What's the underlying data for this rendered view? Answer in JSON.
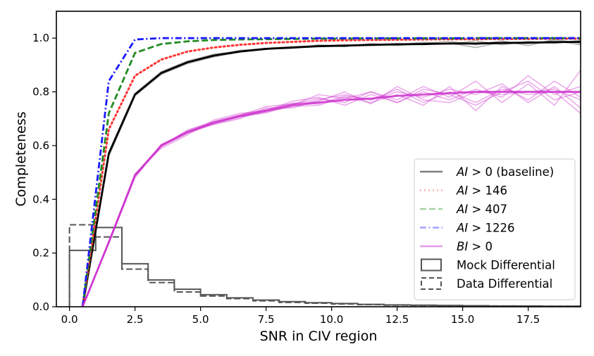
{
  "chart_data": {
    "type": "line",
    "xlabel": "SNR in CIV region",
    "ylabel": "Completeness",
    "xlim": [
      -0.5,
      19.5
    ],
    "ylim": [
      0.0,
      1.1
    ],
    "x_ticks": [
      0.0,
      2.5,
      5.0,
      7.5,
      10.0,
      12.5,
      15.0,
      17.5
    ],
    "x_tick_labels": [
      "0.0",
      "2.5",
      "5.0",
      "7.5",
      "10.0",
      "12.5",
      "15.0",
      "17.5"
    ],
    "y_ticks": [
      0.0,
      0.2,
      0.4,
      0.6,
      0.8,
      1.0
    ],
    "y_tick_labels": [
      "0.0",
      "0.2",
      "0.4",
      "0.6",
      "0.8",
      "1.0"
    ],
    "legend_position": "lower-right",
    "x": [
      0.5,
      1.5,
      2.5,
      3.5,
      4.5,
      5.5,
      6.5,
      7.5,
      8.5,
      9.5,
      10.5,
      11.5,
      12.5,
      13.5,
      14.5,
      15.5,
      16.5,
      17.5,
      18.5,
      19.5
    ],
    "series": [
      {
        "name": "AI > 0 (baseline)",
        "label_prefix": "AI",
        "label_rest": " > 0 (baseline)",
        "color": "#000000",
        "style": "solid",
        "legend_alpha": 0.5,
        "values": [
          0.0,
          0.57,
          0.79,
          0.87,
          0.91,
          0.935,
          0.95,
          0.96,
          0.965,
          0.97,
          0.972,
          0.975,
          0.977,
          0.978,
          0.98,
          0.98,
          0.982,
          0.983,
          0.985,
          0.986
        ],
        "realizations": [
          [
            0.0,
            0.56,
            0.785,
            0.865,
            0.905,
            0.93,
            0.948,
            0.958,
            0.965,
            0.968,
            0.97,
            0.975,
            0.98,
            0.975,
            0.982,
            0.965,
            0.985,
            0.98,
            0.99,
            0.975
          ],
          [
            0.0,
            0.575,
            0.795,
            0.875,
            0.915,
            0.94,
            0.952,
            0.962,
            0.968,
            0.972,
            0.975,
            0.972,
            0.975,
            0.985,
            0.978,
            0.99,
            0.975,
            0.988,
            0.98,
            0.992
          ],
          [
            0.0,
            0.565,
            0.79,
            0.868,
            0.91,
            0.932,
            0.955,
            0.96,
            0.962,
            0.975,
            0.968,
            0.98,
            0.972,
            0.98,
            0.988,
            0.975,
            0.99,
            0.972,
            0.995,
            0.98
          ]
        ]
      },
      {
        "name": "AI > 146",
        "label_prefix": "AI",
        "label_rest": " > 146",
        "color": "#ff3333",
        "style": "dotted",
        "legend_alpha": 0.4,
        "values": [
          0.0,
          0.66,
          0.86,
          0.92,
          0.95,
          0.965,
          0.975,
          0.982,
          0.986,
          0.99,
          0.992,
          0.993,
          0.994,
          0.995,
          0.996,
          0.996,
          0.997,
          0.997,
          0.998,
          0.998
        ]
      },
      {
        "name": "AI > 407",
        "label_prefix": "AI",
        "label_rest": " > 407",
        "color": "#228b22",
        "style": "dashed",
        "legend_alpha": 0.4,
        "values": [
          0.0,
          0.72,
          0.945,
          0.978,
          0.988,
          0.993,
          0.995,
          0.996,
          0.997,
          0.998,
          0.998,
          0.999,
          0.999,
          0.999,
          0.999,
          1.0,
          1.0,
          1.0,
          1.0,
          1.0
        ]
      },
      {
        "name": "AI > 1226",
        "label_prefix": "AI",
        "label_rest": " > 1226",
        "color": "#1a1aff",
        "style": "dashdot",
        "legend_alpha": 0.4,
        "values": [
          0.0,
          0.84,
          0.995,
          1.0,
          1.0,
          1.0,
          1.0,
          1.0,
          1.0,
          1.0,
          1.0,
          1.0,
          1.0,
          1.0,
          1.0,
          1.0,
          1.0,
          1.0,
          1.0,
          1.0
        ]
      },
      {
        "name": "BI > 0",
        "label_prefix": "BI",
        "label_rest": " > 0",
        "color": "#cc33cc",
        "style": "solid",
        "legend_alpha": 0.5,
        "values": [
          0.0,
          0.24,
          0.49,
          0.6,
          0.65,
          0.685,
          0.71,
          0.73,
          0.75,
          0.76,
          0.77,
          0.775,
          0.785,
          0.79,
          0.795,
          0.8,
          0.8,
          0.8,
          0.8,
          0.8
        ],
        "realizations": [
          [
            0.0,
            0.24,
            0.485,
            0.595,
            0.645,
            0.68,
            0.705,
            0.725,
            0.745,
            0.75,
            0.78,
            0.76,
            0.79,
            0.75,
            0.82,
            0.73,
            0.82,
            0.77,
            0.84,
            0.78
          ],
          [
            0.0,
            0.245,
            0.49,
            0.6,
            0.655,
            0.69,
            0.715,
            0.735,
            0.755,
            0.775,
            0.76,
            0.8,
            0.77,
            0.82,
            0.78,
            0.84,
            0.76,
            0.83,
            0.75,
            0.88
          ],
          [
            0.0,
            0.235,
            0.48,
            0.605,
            0.65,
            0.678,
            0.7,
            0.74,
            0.74,
            0.77,
            0.79,
            0.77,
            0.8,
            0.78,
            0.81,
            0.79,
            0.83,
            0.76,
            0.82,
            0.74
          ],
          [
            0.0,
            0.24,
            0.495,
            0.59,
            0.64,
            0.695,
            0.72,
            0.73,
            0.765,
            0.78,
            0.75,
            0.79,
            0.76,
            0.8,
            0.77,
            0.81,
            0.78,
            0.86,
            0.79,
            0.82
          ],
          [
            0.0,
            0.242,
            0.488,
            0.598,
            0.658,
            0.688,
            0.712,
            0.745,
            0.755,
            0.765,
            0.8,
            0.755,
            0.82,
            0.77,
            0.76,
            0.8,
            0.79,
            0.8,
            0.81,
            0.77
          ],
          [
            0.0,
            0.238,
            0.492,
            0.602,
            0.652,
            0.682,
            0.708,
            0.722,
            0.75,
            0.79,
            0.775,
            0.8,
            0.76,
            0.81,
            0.79,
            0.75,
            0.8,
            0.84,
            0.77,
            0.8
          ],
          [
            0.0,
            0.241,
            0.487,
            0.6,
            0.648,
            0.686,
            0.71,
            0.728,
            0.758,
            0.755,
            0.785,
            0.77,
            0.81,
            0.76,
            0.8,
            0.76,
            0.81,
            0.79,
            0.8,
            0.72
          ]
        ]
      }
    ],
    "histograms": [
      {
        "name": "Mock Differential",
        "style": "solid",
        "color": "#555555",
        "bin_edges": [
          0,
          1,
          2,
          3,
          4,
          5,
          6,
          7,
          8,
          9,
          10,
          11,
          12,
          13,
          14,
          15,
          16,
          17,
          18,
          19,
          19.5
        ],
        "values": [
          0.21,
          0.295,
          0.16,
          0.1,
          0.065,
          0.045,
          0.033,
          0.025,
          0.019,
          0.015,
          0.012,
          0.009,
          0.007,
          0.006,
          0.005,
          0.004,
          0.003,
          0.003,
          0.002,
          0.002
        ]
      },
      {
        "name": "Data Differential",
        "style": "dashed",
        "color": "#555555",
        "bin_edges": [
          0,
          1,
          2,
          3,
          4,
          5,
          6,
          7,
          8,
          9,
          10,
          11,
          12,
          13,
          14,
          15,
          16,
          17,
          18,
          19,
          19.5
        ],
        "values": [
          0.305,
          0.26,
          0.14,
          0.09,
          0.055,
          0.04,
          0.03,
          0.022,
          0.016,
          0.013,
          0.01,
          0.008,
          0.006,
          0.005,
          0.004,
          0.003,
          0.003,
          0.002,
          0.002,
          0.002
        ]
      }
    ]
  }
}
